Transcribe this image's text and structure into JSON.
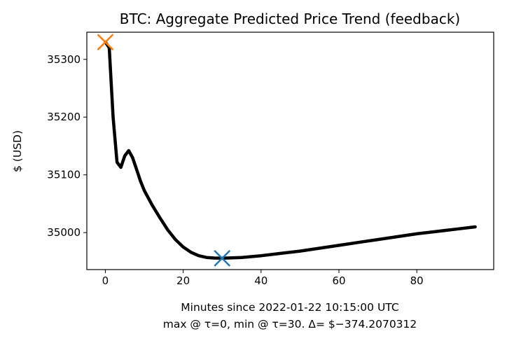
{
  "chart_data": {
    "type": "line",
    "title": "BTC: Aggregate Predicted Price Trend (feedback)",
    "xlabel": "Minutes since 2022-01-22 10:15:00 UTC",
    "xlabel_note": "max @ τ=0, min @ τ=30. Δ= $−374.2070312",
    "ylabel": "$ (USD)",
    "xlim": [
      -4.75,
      99.75
    ],
    "ylim": [
      34936,
      35347
    ],
    "xticks": [
      0,
      20,
      40,
      60,
      80
    ],
    "yticks": [
      35000,
      35100,
      35200,
      35300
    ],
    "grid": false,
    "series": [
      {
        "color": "#000000",
        "x": [
          0,
          1,
          2,
          3,
          4,
          5,
          6,
          7,
          8,
          9,
          10,
          12,
          14,
          16,
          18,
          20,
          22,
          24,
          26,
          28,
          30,
          35,
          40,
          45,
          50,
          55,
          60,
          65,
          70,
          75,
          80,
          85,
          90,
          95
        ],
        "y": [
          35330,
          35320,
          35200,
          35122,
          35113,
          35133,
          35142,
          35130,
          35110,
          35090,
          35073,
          35048,
          35026,
          35005,
          34988,
          34975,
          34966,
          34960,
          34957,
          34956,
          34955.6,
          34957,
          34960,
          34964,
          34968,
          34973,
          34978,
          34983,
          34988,
          34993,
          34998,
          35002,
          35006,
          35010
        ]
      }
    ],
    "markers": [
      {
        "label": "max",
        "x": 0,
        "y": 35329.8,
        "symbol": "x",
        "color": "#ff7f0e"
      },
      {
        "label": "min",
        "x": 30,
        "y": 34955.6,
        "symbol": "x",
        "color": "#1f77b4"
      }
    ]
  }
}
